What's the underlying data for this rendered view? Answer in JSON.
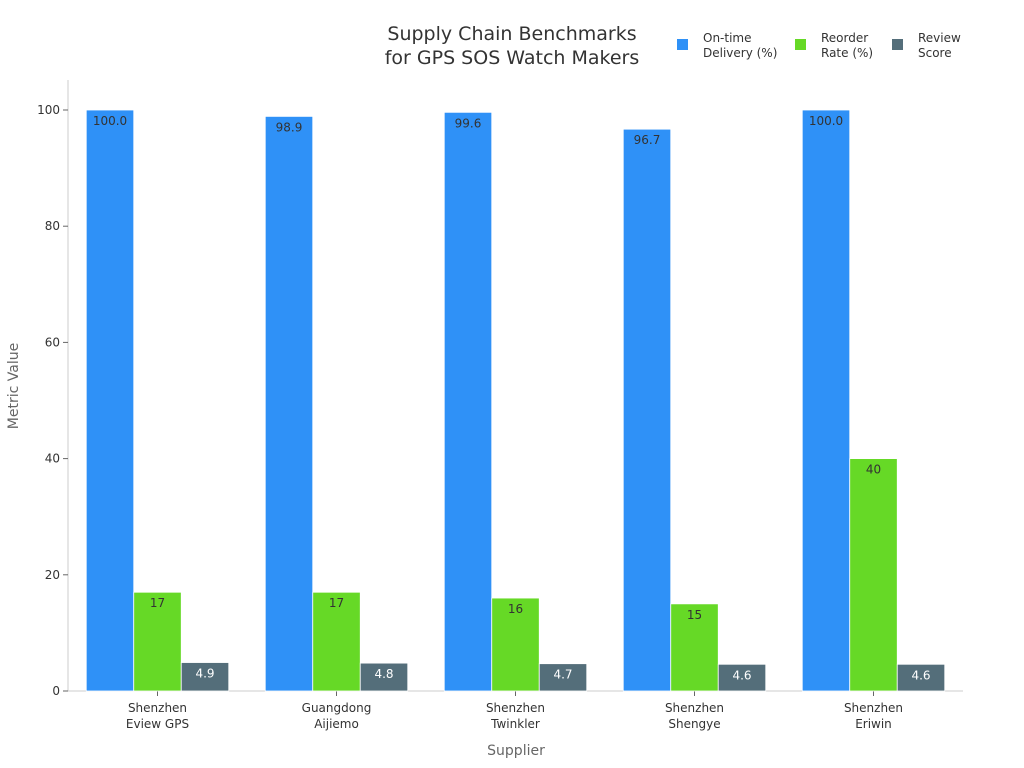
{
  "chart_data": {
    "type": "bar",
    "title": "Supply Chain Benchmarks\nfor GPS SOS Watch Makers",
    "xlabel": "Supplier",
    "ylabel": "Metric Value",
    "ylim": [
      0,
      105
    ],
    "yticks": [
      0,
      20,
      40,
      60,
      80,
      100
    ],
    "categories": [
      "Shenzhen\nEview GPS",
      "Guangdong\nAijiemo",
      "Shenzhen\nTwinkler",
      "Shenzhen\nShengye",
      "Shenzhen\nEriwin"
    ],
    "series": [
      {
        "name": "On-time\nDelivery (%)",
        "color": "#2f91f7",
        "values": [
          100.0,
          98.9,
          99.6,
          96.7,
          100.0
        ],
        "labels": [
          "100.0",
          "98.9",
          "99.6",
          "96.7",
          "100.0"
        ],
        "label_color": "#333333"
      },
      {
        "name": "Reorder\nRate (%)",
        "color": "#66d926",
        "values": [
          17,
          17,
          16,
          15,
          40
        ],
        "labels": [
          "17",
          "17",
          "16",
          "15",
          "40"
        ],
        "label_color": "#333333"
      },
      {
        "name": "Review\nScore",
        "color": "#546e7a",
        "values": [
          4.9,
          4.8,
          4.7,
          4.6,
          4.6
        ],
        "labels": [
          "4.9",
          "4.8",
          "4.7",
          "4.6",
          "4.6"
        ],
        "label_color": "#ffffff"
      }
    ],
    "legend": "top-right",
    "grid": false
  }
}
